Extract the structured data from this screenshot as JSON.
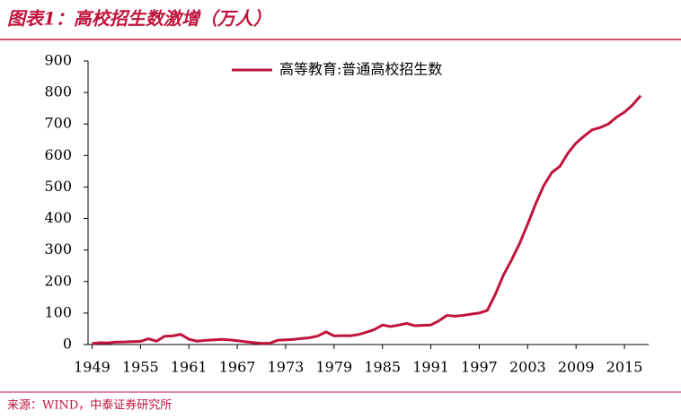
{
  "chart_data": {
    "type": "line",
    "title": "图表1：高校招生数激增（万人）",
    "source": "来源：WIND，中泰证券研究所",
    "x": [
      1949,
      1950,
      1951,
      1952,
      1953,
      1954,
      1955,
      1956,
      1957,
      1958,
      1959,
      1960,
      1961,
      1962,
      1963,
      1964,
      1965,
      1966,
      1967,
      1968,
      1969,
      1970,
      1971,
      1972,
      1973,
      1974,
      1975,
      1976,
      1977,
      1978,
      1979,
      1980,
      1981,
      1982,
      1983,
      1984,
      1985,
      1986,
      1987,
      1988,
      1989,
      1990,
      1991,
      1992,
      1993,
      1994,
      1995,
      1996,
      1997,
      1998,
      1999,
      2000,
      2001,
      2002,
      2003,
      2004,
      2005,
      2006,
      2007,
      2008,
      2009,
      2010,
      2011,
      2012,
      2013,
      2014,
      2015,
      2016,
      2017
    ],
    "series": [
      {
        "name": "高等教育:普通高校招生数",
        "color": "#c0143c",
        "values": [
          3.1,
          5.8,
          5.3,
          7.9,
          8.2,
          9.2,
          9.8,
          18.5,
          10.6,
          26.5,
          27.4,
          32.3,
          16.9,
          10.7,
          13.3,
          14.7,
          16.4,
          15,
          12,
          9,
          6,
          4,
          4,
          13.4,
          15,
          16.5,
          19.1,
          21.7,
          27.3,
          40.2,
          27.5,
          28.1,
          27.9,
          31.5,
          39.1,
          47.5,
          61.9,
          57.2,
          61.7,
          67,
          59.7,
          60.9,
          62,
          75.4,
          92.4,
          90,
          92.6,
          96.6,
          100,
          108.4,
          159.7,
          220.6,
          268.3,
          320.5,
          382.2,
          447.3,
          504.5,
          546.1,
          565.9,
          607.7,
          639.5,
          661.8,
          681.5,
          688.8,
          699.8,
          721.4,
          737.8,
          760,
          790
        ]
      }
    ],
    "xlim": [
      1948.5,
      2018
    ],
    "xticks": [
      1949,
      1955,
      1961,
      1967,
      1973,
      1979,
      1985,
      1991,
      1997,
      2003,
      2009,
      2015
    ],
    "ylim": [
      0,
      900
    ],
    "yticks": [
      0,
      100,
      200,
      300,
      400,
      500,
      600,
      700,
      800,
      900
    ],
    "grid": false,
    "legend": "top"
  }
}
